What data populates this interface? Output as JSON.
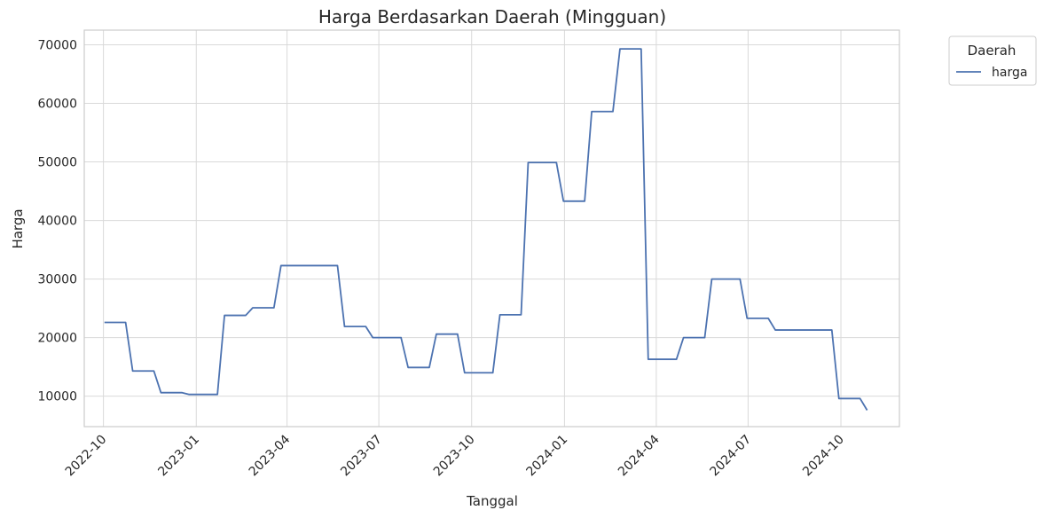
{
  "chart_data": {
    "type": "line",
    "title": "Harga Berdasarkan Daerah (Mingguan)",
    "xlabel": "Tanggal",
    "ylabel": "Harga",
    "x_ticks": [
      "2022-10",
      "2023-01",
      "2023-04",
      "2023-07",
      "2023-10",
      "2024-01",
      "2024-04",
      "2024-07",
      "2024-10"
    ],
    "y_ticks": [
      10000,
      20000,
      30000,
      40000,
      50000,
      60000,
      70000
    ],
    "ylim": [
      4800,
      72500
    ],
    "xlim": [
      "2022-09-12",
      "2024-11-28"
    ],
    "grid": true,
    "legend": {
      "title": "Daerah",
      "placement": "outside-top-right"
    },
    "series": [
      {
        "name": "harga",
        "color": "#4c72b0",
        "points": [
          [
            "2022-10-02",
            22600
          ],
          [
            "2022-10-09",
            22600
          ],
          [
            "2022-10-16",
            22600
          ],
          [
            "2022-10-23",
            22600
          ],
          [
            "2022-10-30",
            14300
          ],
          [
            "2022-11-06",
            14300
          ],
          [
            "2022-11-13",
            14300
          ],
          [
            "2022-11-20",
            14300
          ],
          [
            "2022-11-27",
            10600
          ],
          [
            "2022-12-04",
            10600
          ],
          [
            "2022-12-11",
            10600
          ],
          [
            "2022-12-18",
            10600
          ],
          [
            "2022-12-25",
            10300
          ],
          [
            "2023-01-01",
            10300
          ],
          [
            "2023-01-08",
            10300
          ],
          [
            "2023-01-15",
            10300
          ],
          [
            "2023-01-22",
            10300
          ],
          [
            "2023-01-29",
            23800
          ],
          [
            "2023-02-05",
            23800
          ],
          [
            "2023-02-12",
            23800
          ],
          [
            "2023-02-19",
            23800
          ],
          [
            "2023-02-26",
            25100
          ],
          [
            "2023-03-05",
            25100
          ],
          [
            "2023-03-12",
            25100
          ],
          [
            "2023-03-19",
            25100
          ],
          [
            "2023-03-26",
            32300
          ],
          [
            "2023-04-02",
            32300
          ],
          [
            "2023-04-09",
            32300
          ],
          [
            "2023-04-16",
            32300
          ],
          [
            "2023-04-23",
            32300
          ],
          [
            "2023-04-30",
            32300
          ],
          [
            "2023-05-07",
            32300
          ],
          [
            "2023-05-14",
            32300
          ],
          [
            "2023-05-21",
            32300
          ],
          [
            "2023-05-28",
            21900
          ],
          [
            "2023-06-04",
            21900
          ],
          [
            "2023-06-11",
            21900
          ],
          [
            "2023-06-18",
            21900
          ],
          [
            "2023-06-25",
            20000
          ],
          [
            "2023-07-02",
            20000
          ],
          [
            "2023-07-09",
            20000
          ],
          [
            "2023-07-16",
            20000
          ],
          [
            "2023-07-23",
            20000
          ],
          [
            "2023-07-30",
            14900
          ],
          [
            "2023-08-06",
            14900
          ],
          [
            "2023-08-13",
            14900
          ],
          [
            "2023-08-20",
            14900
          ],
          [
            "2023-08-27",
            20600
          ],
          [
            "2023-09-03",
            20600
          ],
          [
            "2023-09-10",
            20600
          ],
          [
            "2023-09-17",
            20600
          ],
          [
            "2023-09-24",
            14000
          ],
          [
            "2023-10-01",
            14000
          ],
          [
            "2023-10-08",
            14000
          ],
          [
            "2023-10-15",
            14000
          ],
          [
            "2023-10-22",
            14000
          ],
          [
            "2023-10-29",
            23900
          ],
          [
            "2023-11-05",
            23900
          ],
          [
            "2023-11-12",
            23900
          ],
          [
            "2023-11-19",
            23900
          ],
          [
            "2023-11-26",
            49900
          ],
          [
            "2023-12-03",
            49900
          ],
          [
            "2023-12-10",
            49900
          ],
          [
            "2023-12-17",
            49900
          ],
          [
            "2023-12-24",
            49900
          ],
          [
            "2023-12-31",
            43300
          ],
          [
            "2024-01-07",
            43300
          ],
          [
            "2024-01-14",
            43300
          ],
          [
            "2024-01-21",
            43300
          ],
          [
            "2024-01-28",
            58600
          ],
          [
            "2024-02-04",
            58600
          ],
          [
            "2024-02-11",
            58600
          ],
          [
            "2024-02-18",
            58600
          ],
          [
            "2024-02-25",
            69300
          ],
          [
            "2024-03-03",
            69300
          ],
          [
            "2024-03-10",
            69300
          ],
          [
            "2024-03-17",
            69300
          ],
          [
            "2024-03-24",
            16300
          ],
          [
            "2024-03-31",
            16300
          ],
          [
            "2024-04-07",
            16300
          ],
          [
            "2024-04-14",
            16300
          ],
          [
            "2024-04-21",
            16300
          ],
          [
            "2024-04-28",
            20000
          ],
          [
            "2024-05-05",
            20000
          ],
          [
            "2024-05-12",
            20000
          ],
          [
            "2024-05-19",
            20000
          ],
          [
            "2024-05-26",
            30000
          ],
          [
            "2024-06-02",
            30000
          ],
          [
            "2024-06-09",
            30000
          ],
          [
            "2024-06-16",
            30000
          ],
          [
            "2024-06-23",
            30000
          ],
          [
            "2024-06-30",
            23300
          ],
          [
            "2024-07-07",
            23300
          ],
          [
            "2024-07-14",
            23300
          ],
          [
            "2024-07-21",
            23300
          ],
          [
            "2024-07-28",
            21300
          ],
          [
            "2024-08-04",
            21300
          ],
          [
            "2024-08-11",
            21300
          ],
          [
            "2024-08-18",
            21300
          ],
          [
            "2024-08-25",
            21300
          ],
          [
            "2024-09-01",
            21300
          ],
          [
            "2024-09-08",
            21300
          ],
          [
            "2024-09-15",
            21300
          ],
          [
            "2024-09-22",
            21300
          ],
          [
            "2024-09-29",
            9600
          ],
          [
            "2024-10-06",
            9600
          ],
          [
            "2024-10-13",
            9600
          ],
          [
            "2024-10-20",
            9600
          ],
          [
            "2024-10-27",
            7600
          ]
        ]
      }
    ]
  }
}
